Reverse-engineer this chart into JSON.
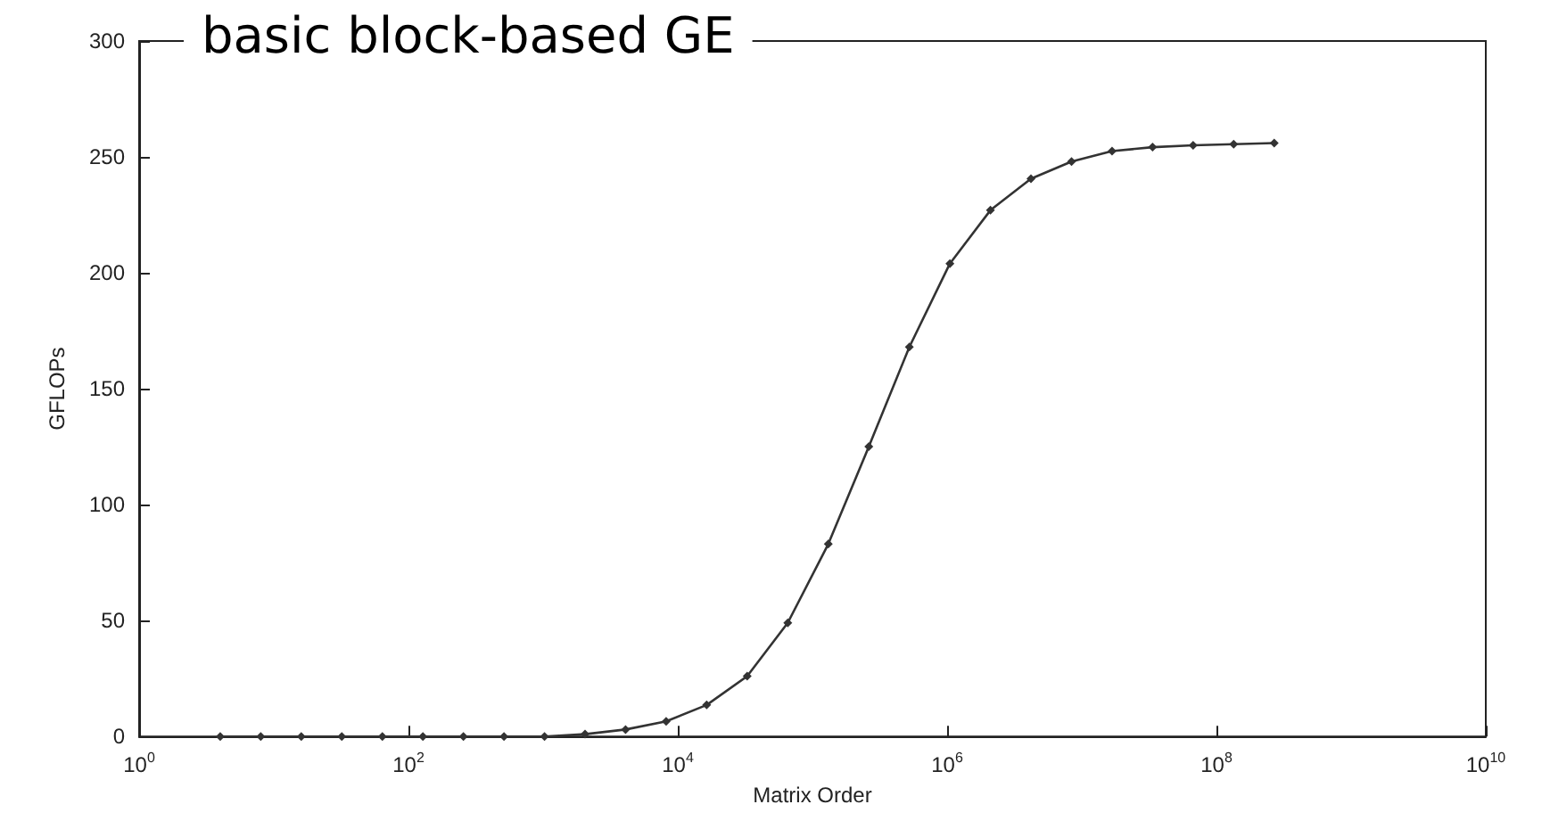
{
  "chart_data": {
    "type": "line",
    "title": "basic block-based GE",
    "xlabel": "Matrix Order",
    "ylabel": "GFLOPs",
    "log": "x",
    "x": [
      4,
      8,
      16,
      32,
      64,
      128,
      256,
      512,
      1024,
      2048,
      4096,
      8192,
      16384,
      32768,
      65536,
      131072,
      262144,
      524288,
      1048576,
      2097152,
      4194304,
      8388608,
      16777216,
      33554432,
      67108864,
      134217728,
      268435456
    ],
    "series": [
      {
        "color": "#333333",
        "values": [
          0,
          0,
          0,
          0,
          0,
          0,
          0,
          0,
          0,
          1,
          3,
          6.5,
          13.6,
          26,
          49,
          83,
          125,
          168,
          204,
          227,
          240.6,
          248,
          252.5,
          254.2,
          255,
          255.5,
          256
        ]
      }
    ],
    "xlim": [
      1,
      10000000000
    ],
    "xticks": [
      {
        "value": 1,
        "label": "10$^{0}$"
      },
      {
        "value": 100,
        "label": "10$^{2}$"
      },
      {
        "value": 10000,
        "label": "10$^{4}$"
      },
      {
        "value": 1000000,
        "label": "10$^{6}$"
      },
      {
        "value": 100000000,
        "label": "10$^{8}$"
      },
      {
        "value": 10000000000,
        "label": "10$^{10}$"
      }
    ],
    "ylim": [
      0,
      300
    ],
    "yticks": [
      0,
      50,
      100,
      150,
      200,
      250,
      300
    ],
    "marker": "diamond",
    "line_style": "solid"
  }
}
